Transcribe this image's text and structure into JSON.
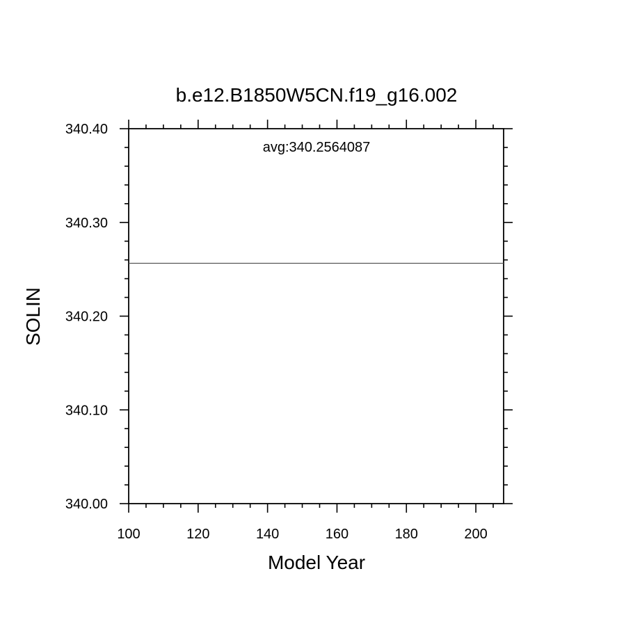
{
  "chart_data": {
    "type": "line",
    "title": "b.e12.B1850W5CN.f19_g16.002",
    "xlabel": "Model Year",
    "ylabel": "SOLIN",
    "annotation": "avg:340.2564087",
    "xlim": [
      100,
      208
    ],
    "ylim": [
      340.0,
      340.4
    ],
    "x_ticks": [
      100,
      120,
      140,
      160,
      180,
      200
    ],
    "x_tick_labels": [
      "100",
      "120",
      "140",
      "160",
      "180",
      "200"
    ],
    "y_ticks": [
      340.0,
      340.1,
      340.2,
      340.3,
      340.4
    ],
    "y_tick_labels": [
      "340.00",
      "340.10",
      "340.20",
      "340.30",
      "340.40"
    ],
    "x_minor_step": 5,
    "y_minor_step": 0.02,
    "grid": false,
    "series": [
      {
        "x": [
          100,
          208
        ],
        "y": [
          340.2564087,
          340.2564087
        ]
      }
    ]
  }
}
